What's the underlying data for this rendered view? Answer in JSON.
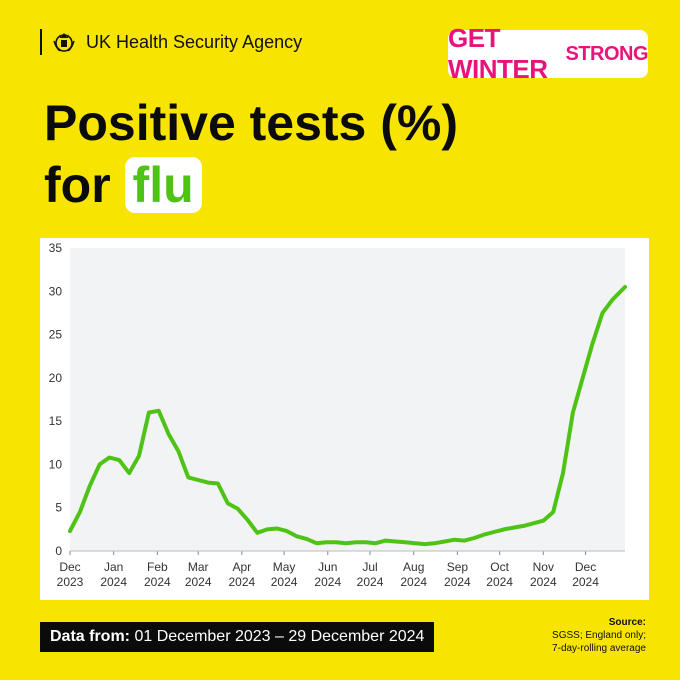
{
  "header": {
    "agency": "UK Health Security Agency",
    "campaign_main": "GET WINTER",
    "campaign_small": "STRONG"
  },
  "title": {
    "line1": "Positive tests (%)",
    "line2_prefix": "for ",
    "line2_highlight": "flu"
  },
  "footer": {
    "label": "Data from:",
    "range": "01 December 2023 – 29 December 2024"
  },
  "source": {
    "label": "Source:",
    "line1": "SGSS; England only;",
    "line2": "7-day-rolling average"
  },
  "colors": {
    "background": "#f7e400",
    "line": "#4ec315",
    "highlight_text": "#4ec315",
    "campaign": "#e8137b"
  },
  "chart_data": {
    "type": "line",
    "title": "",
    "xlabel": "",
    "ylabel": "",
    "ylim": [
      0,
      35
    ],
    "yticks": [
      0,
      5,
      10,
      15,
      20,
      25,
      30,
      35
    ],
    "xlim": [
      "2023-12-01",
      "2024-12-29"
    ],
    "xticks": [
      {
        "date": "2023-12-01",
        "label_month": "Dec",
        "label_year": "2023"
      },
      {
        "date": "2024-01-01",
        "label_month": "Jan",
        "label_year": "2024"
      },
      {
        "date": "2024-02-01",
        "label_month": "Feb",
        "label_year": "2024"
      },
      {
        "date": "2024-03-01",
        "label_month": "Mar",
        "label_year": "2024"
      },
      {
        "date": "2024-04-01",
        "label_month": "Apr",
        "label_year": "2024"
      },
      {
        "date": "2024-05-01",
        "label_month": "May",
        "label_year": "2024"
      },
      {
        "date": "2024-06-01",
        "label_month": "Jun",
        "label_year": "2024"
      },
      {
        "date": "2024-07-01",
        "label_month": "Jul",
        "label_year": "2024"
      },
      {
        "date": "2024-08-01",
        "label_month": "Aug",
        "label_year": "2024"
      },
      {
        "date": "2024-09-01",
        "label_month": "Sep",
        "label_year": "2024"
      },
      {
        "date": "2024-10-01",
        "label_month": "Oct",
        "label_year": "2024"
      },
      {
        "date": "2024-11-01",
        "label_month": "Nov",
        "label_year": "2024"
      },
      {
        "date": "2024-12-01",
        "label_month": "Dec",
        "label_year": "2024"
      }
    ],
    "grid": false,
    "series": [
      {
        "x": [
          "2023-12-01",
          "2023-12-08",
          "2023-12-15",
          "2023-12-22",
          "2023-12-29",
          "2024-01-05",
          "2024-01-12",
          "2024-01-19",
          "2024-01-26",
          "2024-02-02",
          "2024-02-09",
          "2024-02-16",
          "2024-02-23",
          "2024-03-01",
          "2024-03-08",
          "2024-03-15",
          "2024-03-22",
          "2024-03-29",
          "2024-04-05",
          "2024-04-12",
          "2024-04-19",
          "2024-04-26",
          "2024-05-03",
          "2024-05-10",
          "2024-05-17",
          "2024-05-24",
          "2024-05-31",
          "2024-06-07",
          "2024-06-14",
          "2024-06-21",
          "2024-06-28",
          "2024-07-05",
          "2024-07-12",
          "2024-07-19",
          "2024-07-26",
          "2024-08-02",
          "2024-08-09",
          "2024-08-16",
          "2024-08-23",
          "2024-08-30",
          "2024-09-06",
          "2024-09-13",
          "2024-09-20",
          "2024-09-27",
          "2024-10-04",
          "2024-10-11",
          "2024-10-18",
          "2024-10-25",
          "2024-11-01",
          "2024-11-08",
          "2024-11-15",
          "2024-11-22",
          "2024-11-29",
          "2024-12-06",
          "2024-12-13",
          "2024-12-20",
          "2024-12-29"
        ],
        "values": [
          2.3,
          4.5,
          7.5,
          10.0,
          10.8,
          10.5,
          9.0,
          11.0,
          16.0,
          16.2,
          13.5,
          11.5,
          8.5,
          8.2,
          7.9,
          7.8,
          5.5,
          4.9,
          3.6,
          2.1,
          2.5,
          2.6,
          2.3,
          1.7,
          1.4,
          0.9,
          1.0,
          1.0,
          0.9,
          1.0,
          1.0,
          0.9,
          1.2,
          1.1,
          1.0,
          0.9,
          0.8,
          0.9,
          1.1,
          1.3,
          1.2,
          1.5,
          1.9,
          2.2,
          2.5,
          2.7,
          2.9,
          3.2,
          3.5,
          4.5,
          9.0,
          16.0,
          20.0,
          24.0,
          27.5,
          29.0,
          30.5
        ]
      }
    ]
  }
}
